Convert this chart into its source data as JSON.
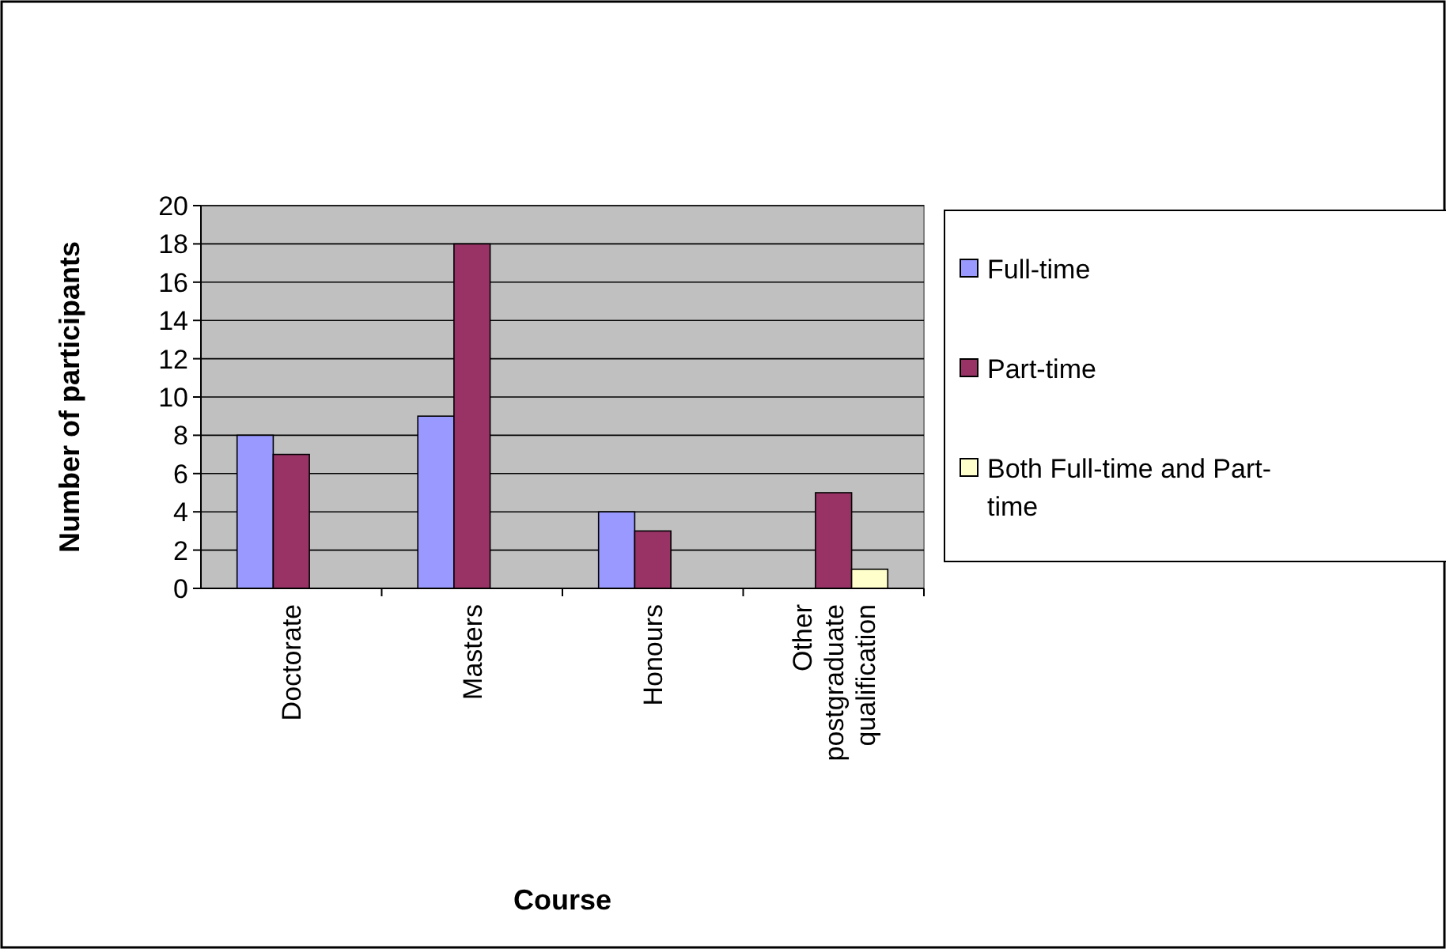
{
  "chart_data": {
    "type": "bar",
    "xlabel": "Course",
    "ylabel": "Number of participants",
    "categories": [
      "Doctorate",
      "Masters",
      "Honours",
      "Other postgraduate qualification"
    ],
    "series": [
      {
        "name": "Full-time",
        "color": "#9999ff",
        "values": [
          8,
          9,
          4,
          0
        ]
      },
      {
        "name": "Part-time",
        "color": "#993366",
        "values": [
          7,
          18,
          3,
          5
        ]
      },
      {
        "name": "Both Full-time and Part-time",
        "color": "#ffffcc",
        "values": [
          0,
          0,
          0,
          1
        ]
      }
    ],
    "ylim": [
      0,
      20
    ],
    "yticks": [
      0,
      2,
      4,
      6,
      8,
      10,
      12,
      14,
      16,
      18,
      20
    ],
    "grid": "y",
    "legend": "right"
  }
}
